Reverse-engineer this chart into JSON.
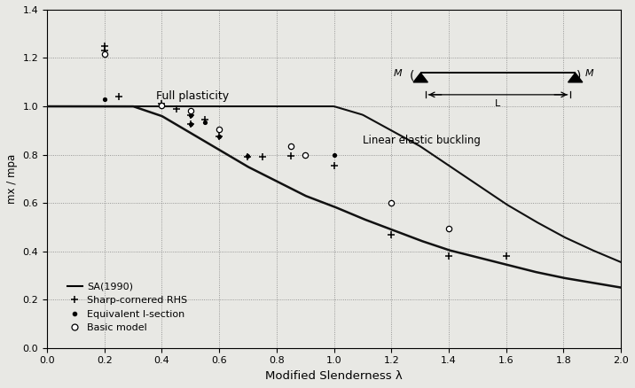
{
  "title": "",
  "xlabel": "Modified Slenderness λ",
  "ylabel": "mx / mpa",
  "xlim": [
    0,
    2.0
  ],
  "ylim": [
    0,
    1.4
  ],
  "xticks": [
    0,
    0.2,
    0.4,
    0.6,
    0.8,
    1.0,
    1.2,
    1.4,
    1.6,
    1.8,
    2.0
  ],
  "yticks": [
    0,
    0.2,
    0.4,
    0.6,
    0.8,
    1.0,
    1.2,
    1.4
  ],
  "background_color": "#e8e8e4",
  "sa_curve_color": "#111111",
  "linear_elastic_color": "#111111",
  "full_plasticity_label": "Full plasticity",
  "linear_elastic_label": "Linear elastic buckling",
  "sharp_cornered_data": [
    [
      0.2,
      1.25
    ],
    [
      0.2,
      1.23
    ],
    [
      0.25,
      1.04
    ],
    [
      0.4,
      1.01
    ],
    [
      0.45,
      0.99
    ],
    [
      0.5,
      0.965
    ],
    [
      0.5,
      0.925
    ],
    [
      0.55,
      0.945
    ],
    [
      0.6,
      0.875
    ],
    [
      0.7,
      0.79
    ],
    [
      0.75,
      0.79
    ],
    [
      0.85,
      0.795
    ],
    [
      1.0,
      0.755
    ],
    [
      1.2,
      0.47
    ],
    [
      1.4,
      0.38
    ],
    [
      1.6,
      0.38
    ]
  ],
  "equivalent_I_data": [
    [
      0.2,
      1.03
    ],
    [
      0.4,
      1.0
    ],
    [
      0.5,
      0.965
    ],
    [
      0.5,
      0.925
    ],
    [
      0.55,
      0.935
    ],
    [
      0.6,
      0.875
    ],
    [
      0.7,
      0.795
    ],
    [
      1.0,
      0.8
    ],
    [
      1.4,
      0.49
    ]
  ],
  "basic_model_data": [
    [
      0.2,
      1.215
    ],
    [
      0.4,
      1.005
    ],
    [
      0.5,
      0.98
    ],
    [
      0.6,
      0.905
    ],
    [
      0.85,
      0.835
    ],
    [
      0.9,
      0.8
    ],
    [
      1.2,
      0.6
    ],
    [
      1.4,
      0.495
    ]
  ],
  "sa_points": [
    [
      0.0,
      1.0
    ],
    [
      0.3,
      1.0
    ],
    [
      0.4,
      0.96
    ],
    [
      0.5,
      0.89
    ],
    [
      0.6,
      0.82
    ],
    [
      0.7,
      0.75
    ],
    [
      0.8,
      0.69
    ],
    [
      0.9,
      0.63
    ],
    [
      1.0,
      0.585
    ],
    [
      1.1,
      0.535
    ],
    [
      1.2,
      0.49
    ],
    [
      1.3,
      0.445
    ],
    [
      1.4,
      0.405
    ],
    [
      1.5,
      0.375
    ],
    [
      1.6,
      0.345
    ],
    [
      1.7,
      0.315
    ],
    [
      1.8,
      0.29
    ],
    [
      1.9,
      0.27
    ],
    [
      2.0,
      0.25
    ]
  ],
  "le_points": [
    [
      0.0,
      1.0
    ],
    [
      0.2,
      1.0
    ],
    [
      0.4,
      1.0
    ],
    [
      0.6,
      1.0
    ],
    [
      0.8,
      1.0
    ],
    [
      1.0,
      1.0
    ],
    [
      1.1,
      0.965
    ],
    [
      1.2,
      0.9
    ],
    [
      1.3,
      0.835
    ],
    [
      1.4,
      0.755
    ],
    [
      1.5,
      0.675
    ],
    [
      1.6,
      0.595
    ],
    [
      1.7,
      0.525
    ],
    [
      1.8,
      0.46
    ],
    [
      1.9,
      0.405
    ],
    [
      2.0,
      0.355
    ]
  ]
}
